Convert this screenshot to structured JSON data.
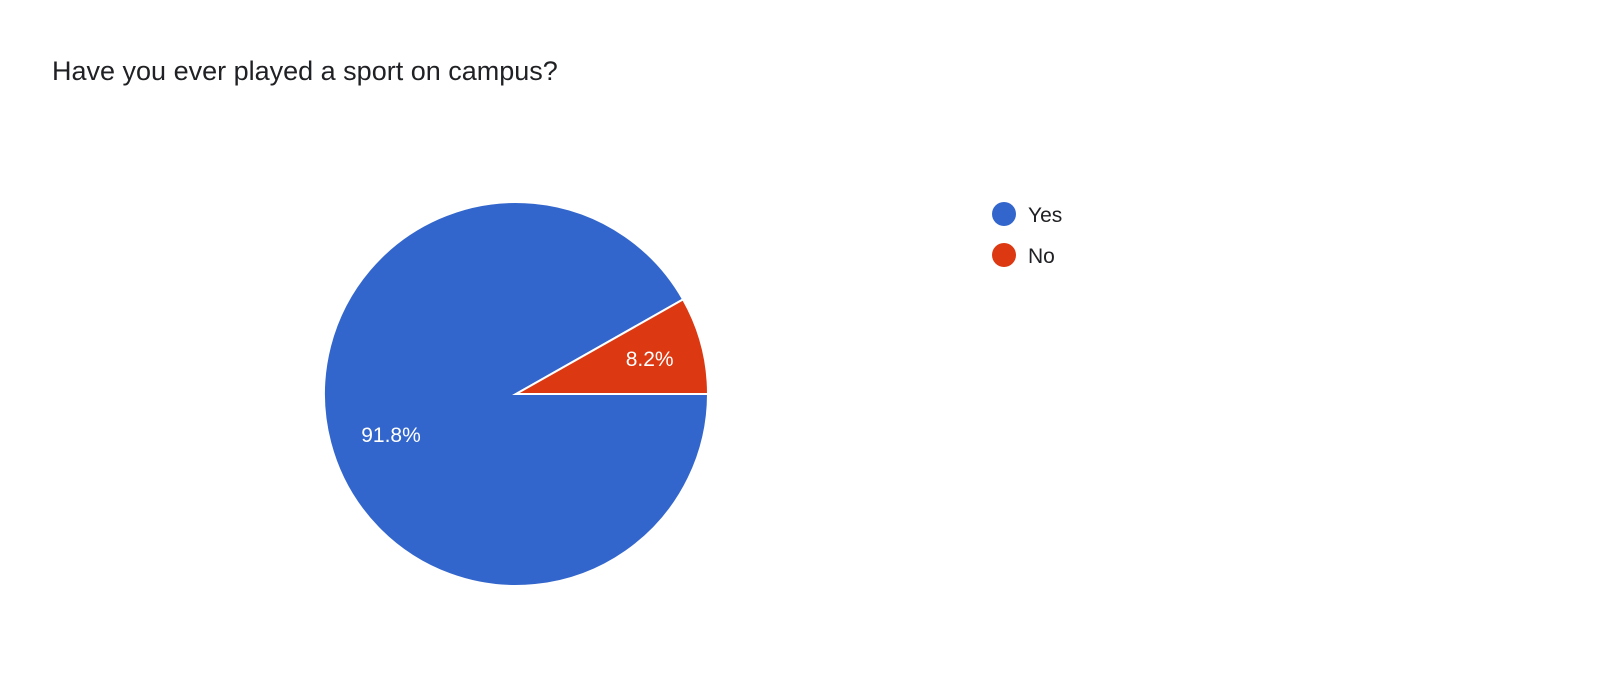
{
  "chart_data": {
    "type": "pie",
    "title": "Have you ever played a sport on campus?",
    "categories": [
      "Yes",
      "No"
    ],
    "values": [
      91.8,
      8.2
    ],
    "data_labels": [
      "91.8%",
      "8.2%"
    ],
    "colors": [
      "#3366cc",
      "#dc3912"
    ],
    "legend": {
      "placement": "right",
      "entries": [
        "Yes",
        "No"
      ]
    },
    "start_angle": "3 o'clock, clockwise"
  }
}
